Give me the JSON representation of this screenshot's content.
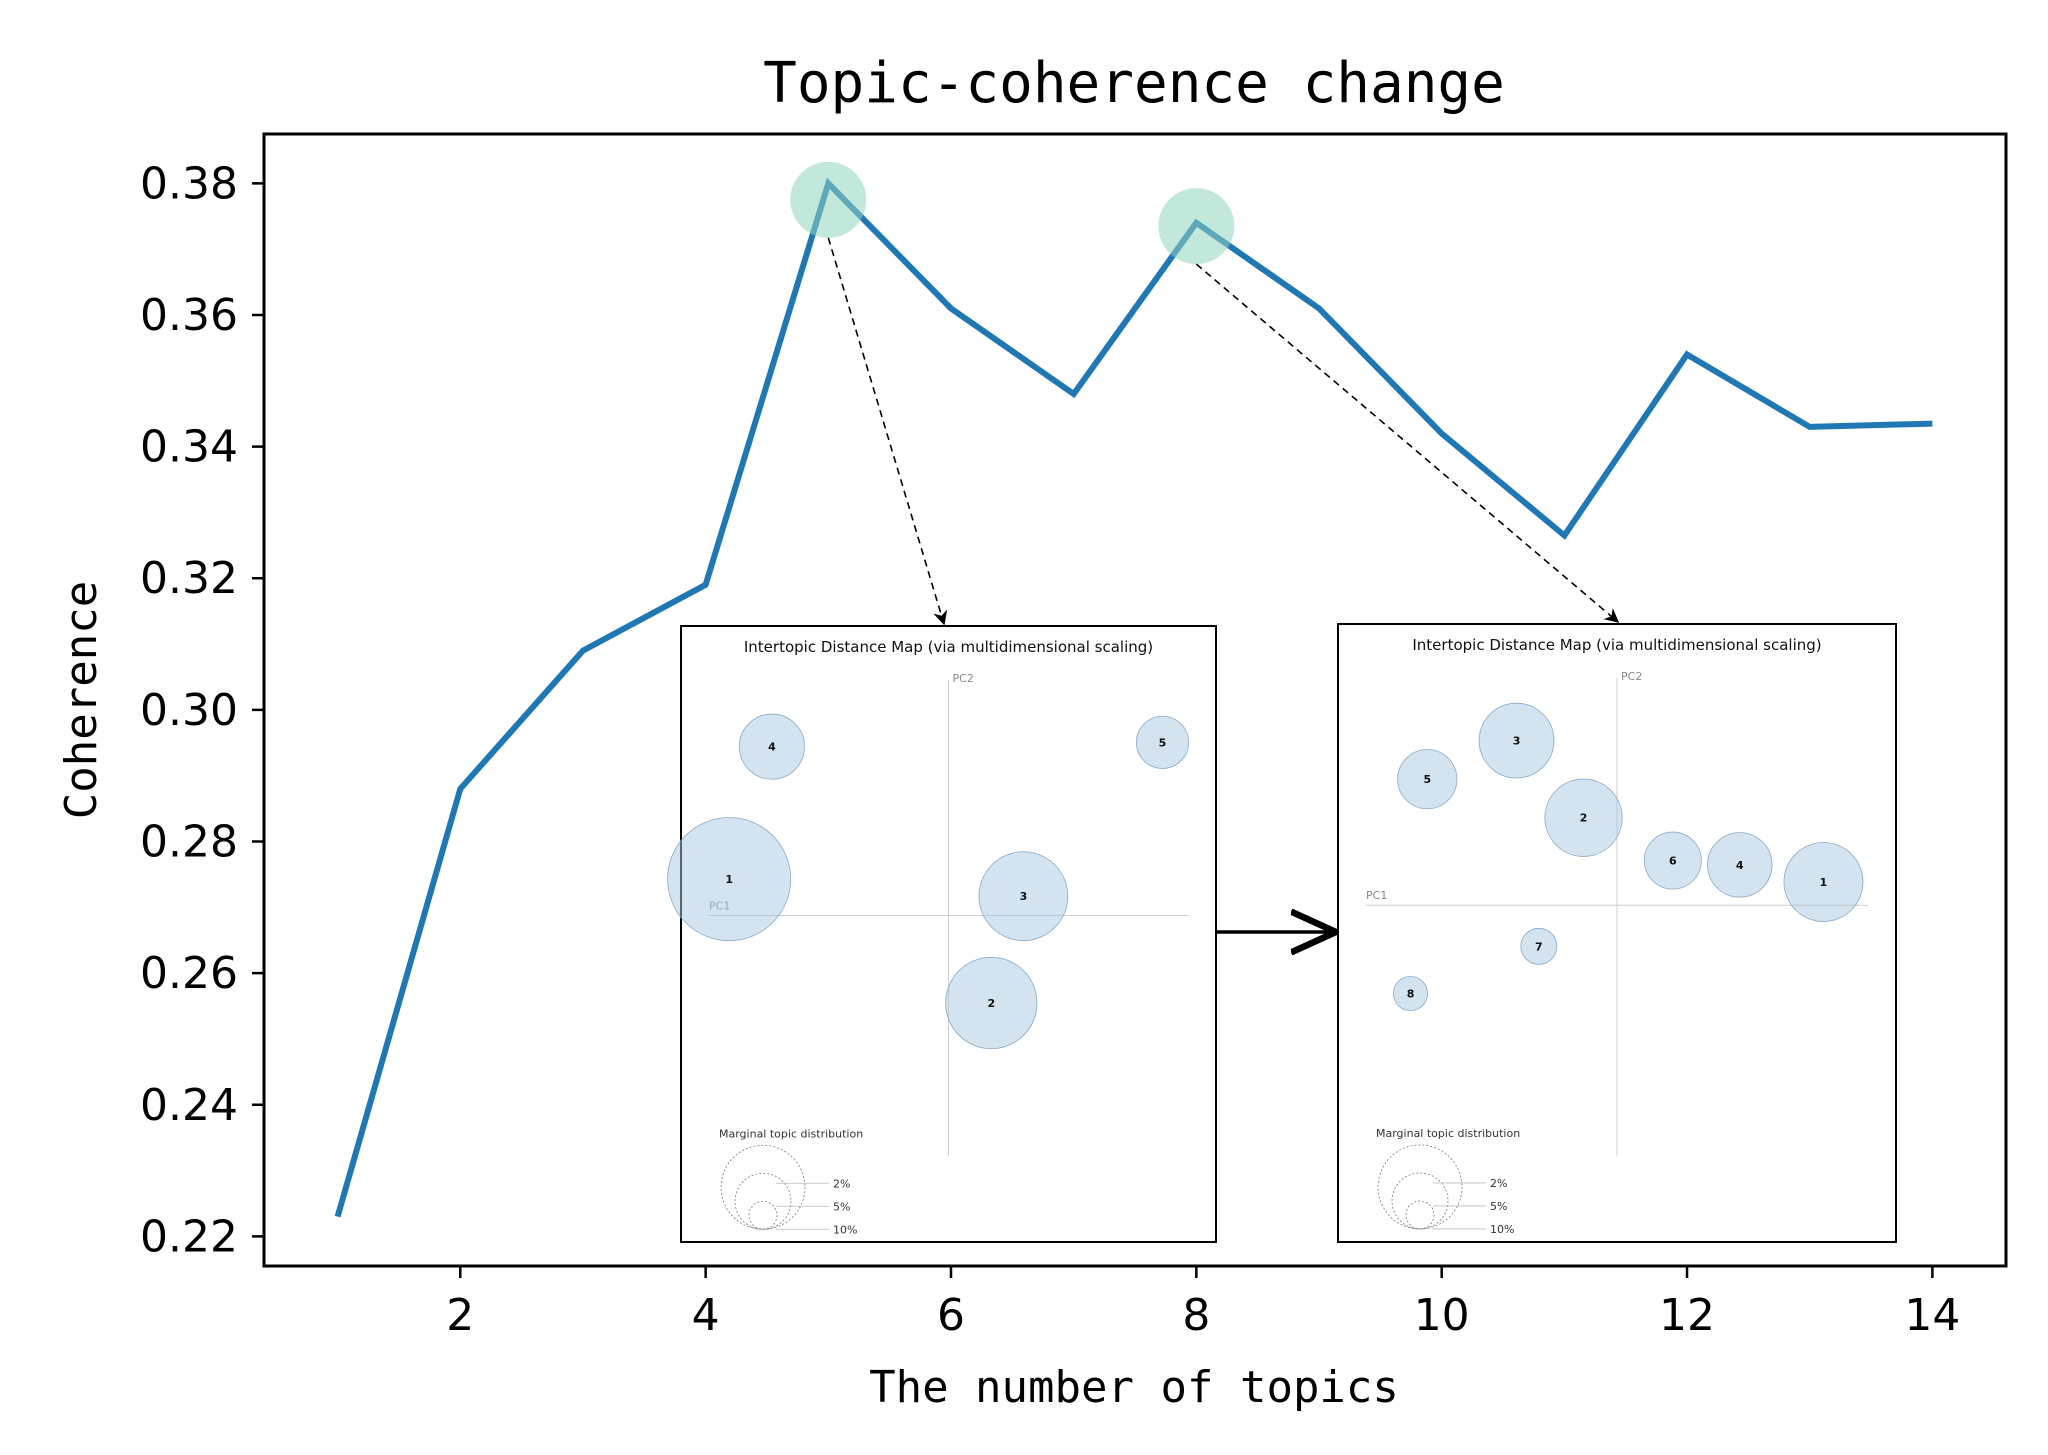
{
  "chart_data": {
    "type": "line",
    "title": "Topic-coherence change",
    "xlabel": "The number of topics",
    "ylabel": "Coherence",
    "xlim": [
      0.4,
      14.6
    ],
    "ylim": [
      0.2155,
      0.3875
    ],
    "xticks": [
      2,
      4,
      6,
      8,
      10,
      12,
      14
    ],
    "yticks": [
      0.22,
      0.24,
      0.26,
      0.28,
      0.3,
      0.32,
      0.34,
      0.36,
      0.38
    ],
    "ytick_labels": [
      "0.22",
      "0.24",
      "0.26",
      "0.28",
      "0.30",
      "0.32",
      "0.34",
      "0.36",
      "0.38"
    ],
    "grid": false,
    "series": [
      {
        "x": [
          1,
          2,
          3,
          4,
          5,
          6,
          7,
          8,
          9,
          10,
          11,
          12,
          13,
          14
        ],
        "values": [
          0.223,
          0.288,
          0.309,
          0.319,
          0.38,
          0.361,
          0.348,
          0.374,
          0.361,
          0.342,
          0.3265,
          0.354,
          0.343,
          0.3435
        ],
        "color": "#1f77b4"
      }
    ],
    "highlights": [
      {
        "x": 5,
        "y": 0.3775,
        "color": "#8fd3bd"
      },
      {
        "x": 8,
        "y": 0.3735,
        "color": "#8fd3bd"
      }
    ],
    "insets": [
      {
        "title": "Intertopic Distance Map (via multidimensional scaling)",
        "pc1": "PC1",
        "pc2": "PC2",
        "legend_title": "Marginal topic distribution",
        "legend_labels": [
          "2%",
          "5%",
          "10%"
        ],
        "topics": [
          {
            "id": "1",
            "x": 0.09,
            "y": 0.48,
            "size": 10
          },
          {
            "id": "2",
            "x": 0.58,
            "y": 0.77,
            "size": 5.5
          },
          {
            "id": "3",
            "x": 0.64,
            "y": 0.52,
            "size": 5.2
          },
          {
            "id": "4",
            "x": 0.17,
            "y": 0.17,
            "size": 2.8
          },
          {
            "id": "5",
            "x": 0.9,
            "y": 0.16,
            "size": 1.8
          }
        ]
      },
      {
        "title": "Intertopic Distance Map (via multidimensional scaling)",
        "pc1": "PC1",
        "pc2": "PC2",
        "legend_title": "Marginal topic distribution",
        "legend_labels": [
          "2%",
          "5%",
          "10%"
        ],
        "topics": [
          {
            "id": "1",
            "x": 0.87,
            "y": 0.49,
            "size": 4.8
          },
          {
            "id": "2",
            "x": 0.44,
            "y": 0.34,
            "size": 4.6
          },
          {
            "id": "3",
            "x": 0.32,
            "y": 0.16,
            "size": 4.3
          },
          {
            "id": "4",
            "x": 0.72,
            "y": 0.45,
            "size": 3.2
          },
          {
            "id": "5",
            "x": 0.16,
            "y": 0.25,
            "size": 2.7
          },
          {
            "id": "6",
            "x": 0.6,
            "y": 0.44,
            "size": 2.5
          },
          {
            "id": "7",
            "x": 0.36,
            "y": 0.64,
            "size": 1.0
          },
          {
            "id": "8",
            "x": 0.13,
            "y": 0.75,
            "size": 0.9
          }
        ]
      }
    ]
  }
}
